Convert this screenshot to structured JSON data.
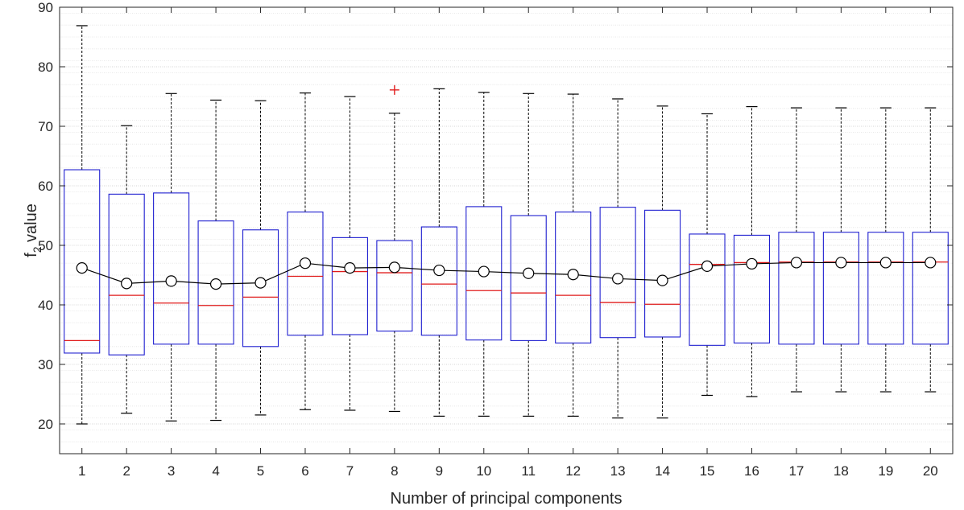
{
  "chart_data": {
    "type": "box",
    "xlabel": "Number of principal components",
    "ylabel_main": "f",
    "ylabel_sub": "2",
    "ylabel_rest": " value",
    "ylim": [
      15,
      90
    ],
    "yticks": [
      20,
      30,
      40,
      50,
      60,
      70,
      80,
      90
    ],
    "grid": true,
    "grid_minor": true,
    "categories": [
      "1",
      "2",
      "3",
      "4",
      "5",
      "6",
      "7",
      "8",
      "9",
      "10",
      "11",
      "12",
      "13",
      "14",
      "15",
      "16",
      "17",
      "18",
      "19",
      "20"
    ],
    "boxes": [
      {
        "whisker_low": 20.0,
        "q1": 31.9,
        "median": 34.0,
        "q3": 62.7,
        "whisker_high": 86.9,
        "mean": 46.2
      },
      {
        "whisker_low": 21.8,
        "q1": 31.6,
        "median": 41.6,
        "q3": 58.6,
        "whisker_high": 70.1,
        "mean": 43.6
      },
      {
        "whisker_low": 20.5,
        "q1": 33.4,
        "median": 40.3,
        "q3": 58.8,
        "whisker_high": 75.5,
        "mean": 44.0
      },
      {
        "whisker_low": 20.6,
        "q1": 33.4,
        "median": 39.9,
        "q3": 54.1,
        "whisker_high": 74.4,
        "mean": 43.5
      },
      {
        "whisker_low": 21.5,
        "q1": 33.0,
        "median": 41.3,
        "q3": 52.6,
        "whisker_high": 74.3,
        "mean": 43.7
      },
      {
        "whisker_low": 22.4,
        "q1": 34.9,
        "median": 44.8,
        "q3": 55.6,
        "whisker_high": 75.6,
        "mean": 47.0
      },
      {
        "whisker_low": 22.3,
        "q1": 35.0,
        "median": 45.6,
        "q3": 51.3,
        "whisker_high": 75.0,
        "mean": 46.2
      },
      {
        "whisker_low": 22.1,
        "q1": 35.6,
        "median": 45.4,
        "q3": 50.8,
        "whisker_high": 72.2,
        "mean": 46.3,
        "outliers": [
          76.1
        ]
      },
      {
        "whisker_low": 21.3,
        "q1": 34.9,
        "median": 43.5,
        "q3": 53.1,
        "whisker_high": 76.3,
        "mean": 45.8
      },
      {
        "whisker_low": 21.3,
        "q1": 34.1,
        "median": 42.4,
        "q3": 56.5,
        "whisker_high": 75.7,
        "mean": 45.6
      },
      {
        "whisker_low": 21.3,
        "q1": 34.0,
        "median": 42.0,
        "q3": 55.0,
        "whisker_high": 75.5,
        "mean": 45.3
      },
      {
        "whisker_low": 21.3,
        "q1": 33.6,
        "median": 41.6,
        "q3": 55.6,
        "whisker_high": 75.4,
        "mean": 45.1
      },
      {
        "whisker_low": 21.0,
        "q1": 34.5,
        "median": 40.4,
        "q3": 56.4,
        "whisker_high": 74.6,
        "mean": 44.4
      },
      {
        "whisker_low": 21.0,
        "q1": 34.6,
        "median": 40.1,
        "q3": 55.9,
        "whisker_high": 73.4,
        "mean": 44.1
      },
      {
        "whisker_low": 24.8,
        "q1": 33.2,
        "median": 46.8,
        "q3": 51.9,
        "whisker_high": 72.1,
        "mean": 46.5
      },
      {
        "whisker_low": 24.6,
        "q1": 33.6,
        "median": 47.1,
        "q3": 51.7,
        "whisker_high": 73.3,
        "mean": 46.9
      },
      {
        "whisker_low": 25.4,
        "q1": 33.4,
        "median": 47.2,
        "q3": 52.2,
        "whisker_high": 73.1,
        "mean": 47.1
      },
      {
        "whisker_low": 25.4,
        "q1": 33.4,
        "median": 47.2,
        "q3": 52.2,
        "whisker_high": 73.1,
        "mean": 47.1
      },
      {
        "whisker_low": 25.4,
        "q1": 33.4,
        "median": 47.2,
        "q3": 52.2,
        "whisker_high": 73.1,
        "mean": 47.1
      },
      {
        "whisker_low": 25.4,
        "q1": 33.4,
        "median": 47.2,
        "q3": 52.2,
        "whisker_high": 73.1,
        "mean": 47.1
      }
    ],
    "colors": {
      "box": "#1f1fd0",
      "median": "#e01b1b",
      "whisker": "#000000",
      "mean_marker": "#000000",
      "outlier": "#e01b1b",
      "grid": "#d4d4d4"
    }
  }
}
